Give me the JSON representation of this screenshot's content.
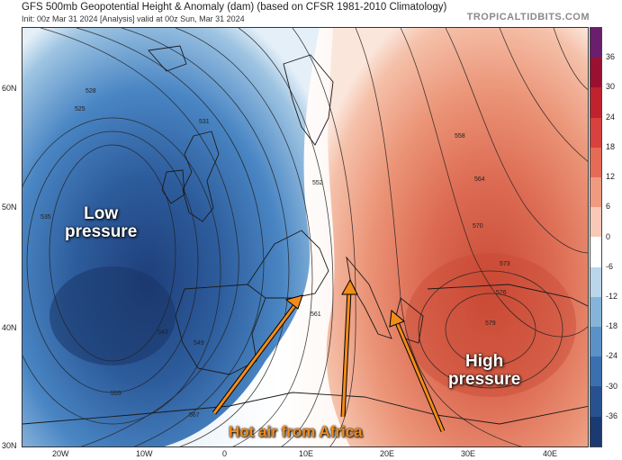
{
  "header": {
    "title": "GFS 500mb Geopotential Height & Anomaly (dam) (based on CFSR 1981-2010 Climatology)",
    "subtitle": "Init: 00z Mar 31 2024   [Analysis]   valid at 00z Sun, Mar 31 2024",
    "brand": "TROPICALTIDBITS.COM"
  },
  "map": {
    "lat_labels": [
      "60N",
      "50N",
      "40N",
      "30N"
    ],
    "lon_labels": [
      "20W",
      "10W",
      "0",
      "10E",
      "20E",
      "30E",
      "40E"
    ],
    "contour_labels": [
      "528",
      "525",
      "531",
      "535",
      "543",
      "549",
      "552",
      "555",
      "558",
      "561",
      "564",
      "567",
      "570",
      "573",
      "576",
      "579"
    ],
    "colors": {
      "deep_low": "#1f3f7a",
      "low": "#4a86c4",
      "near_zero": "#ffffff",
      "high": "#e8866a",
      "deep_high": "#c94a35",
      "land_line": "#222222"
    }
  },
  "colorbar": {
    "labels": [
      "36",
      "30",
      "24",
      "18",
      "12",
      "6",
      "0",
      "-6",
      "-12",
      "-18",
      "-24",
      "-30",
      "-36"
    ],
    "colors": [
      "#6b1e6b",
      "#9a1030",
      "#c0222e",
      "#d8413d",
      "#e56b56",
      "#f09a80",
      "#f7c9b6",
      "#ffffff",
      "#b9d6ea",
      "#86b4d8",
      "#5a91c6",
      "#3a6fb0",
      "#27528f",
      "#1b3a70"
    ]
  },
  "annotations": {
    "low": "Low\npressure",
    "high": "High\npressure",
    "hot_air": "Hot air from Africa"
  }
}
